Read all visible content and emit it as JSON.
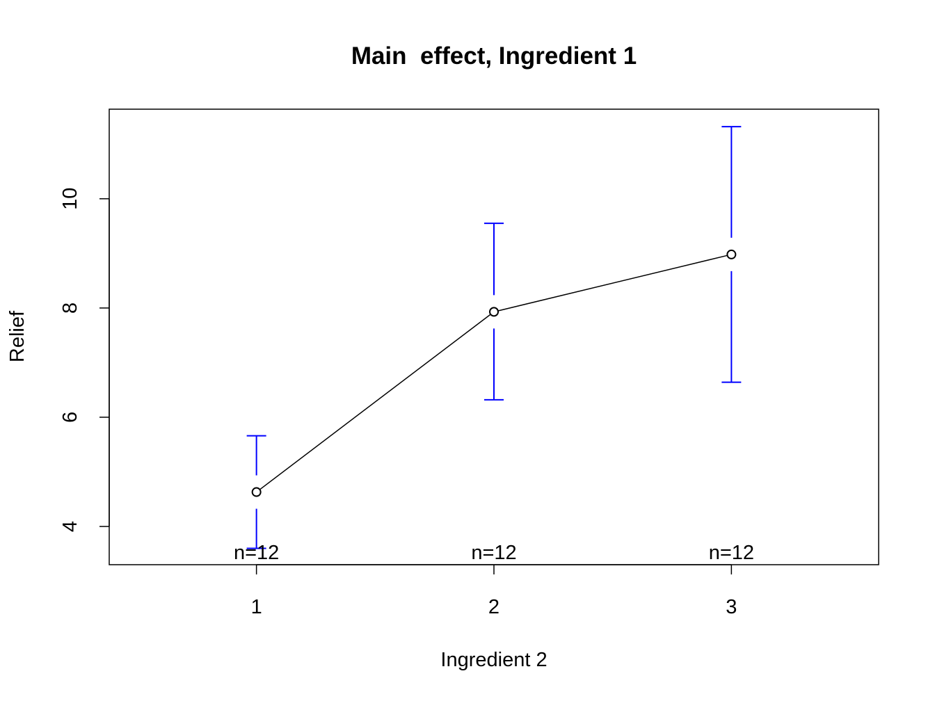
{
  "chart_data": {
    "type": "line",
    "title": "Main  effect, Ingredient 1",
    "xlabel": "Ingredient 2",
    "ylabel": "Relief",
    "categories": [
      "1",
      "2",
      "3"
    ],
    "x": [
      1,
      2,
      3
    ],
    "values": [
      4.63,
      7.93,
      8.98
    ],
    "ci_upper": [
      5.66,
      9.55,
      11.32
    ],
    "ci_lower": [
      3.6,
      6.32,
      6.64
    ],
    "n_labels": [
      "n=12",
      "n=12",
      "n=12"
    ],
    "xlim": [
      0.38,
      3.62
    ],
    "ylim": [
      3.3,
      11.64
    ],
    "yticks": [
      4,
      6,
      8,
      10
    ],
    "ytick_labels": [
      "4",
      "6",
      "8",
      "10"
    ],
    "grid": false,
    "colors": {
      "line": "#000000",
      "error_bars": "#0000ff",
      "points": "#000000"
    }
  }
}
